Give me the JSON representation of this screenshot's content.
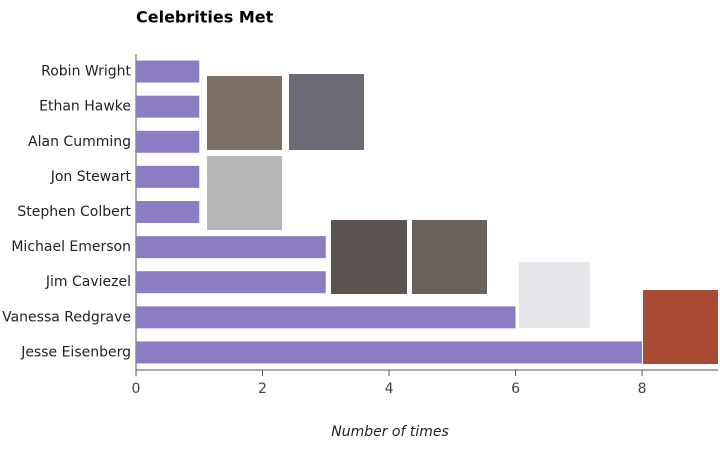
{
  "chart_data": {
    "type": "bar",
    "orientation": "horizontal",
    "title": "Celebrities Met",
    "x_label": "Number of times",
    "categories": [
      "Robin Wright",
      "Ethan Hawke",
      "Alan Cumming",
      "Jon Stewart",
      "Stephen Colbert",
      "Michael Emerson",
      "Jim Caviezel",
      "Vanessa Redgrave",
      "Jesse Eisenberg"
    ],
    "values": [
      1,
      1,
      1,
      1,
      1,
      3,
      3,
      6,
      8
    ],
    "color": "#8c7dc3",
    "xlim": [
      0,
      9.2
    ],
    "xticks": [
      0,
      2,
      4,
      6,
      8
    ]
  }
}
